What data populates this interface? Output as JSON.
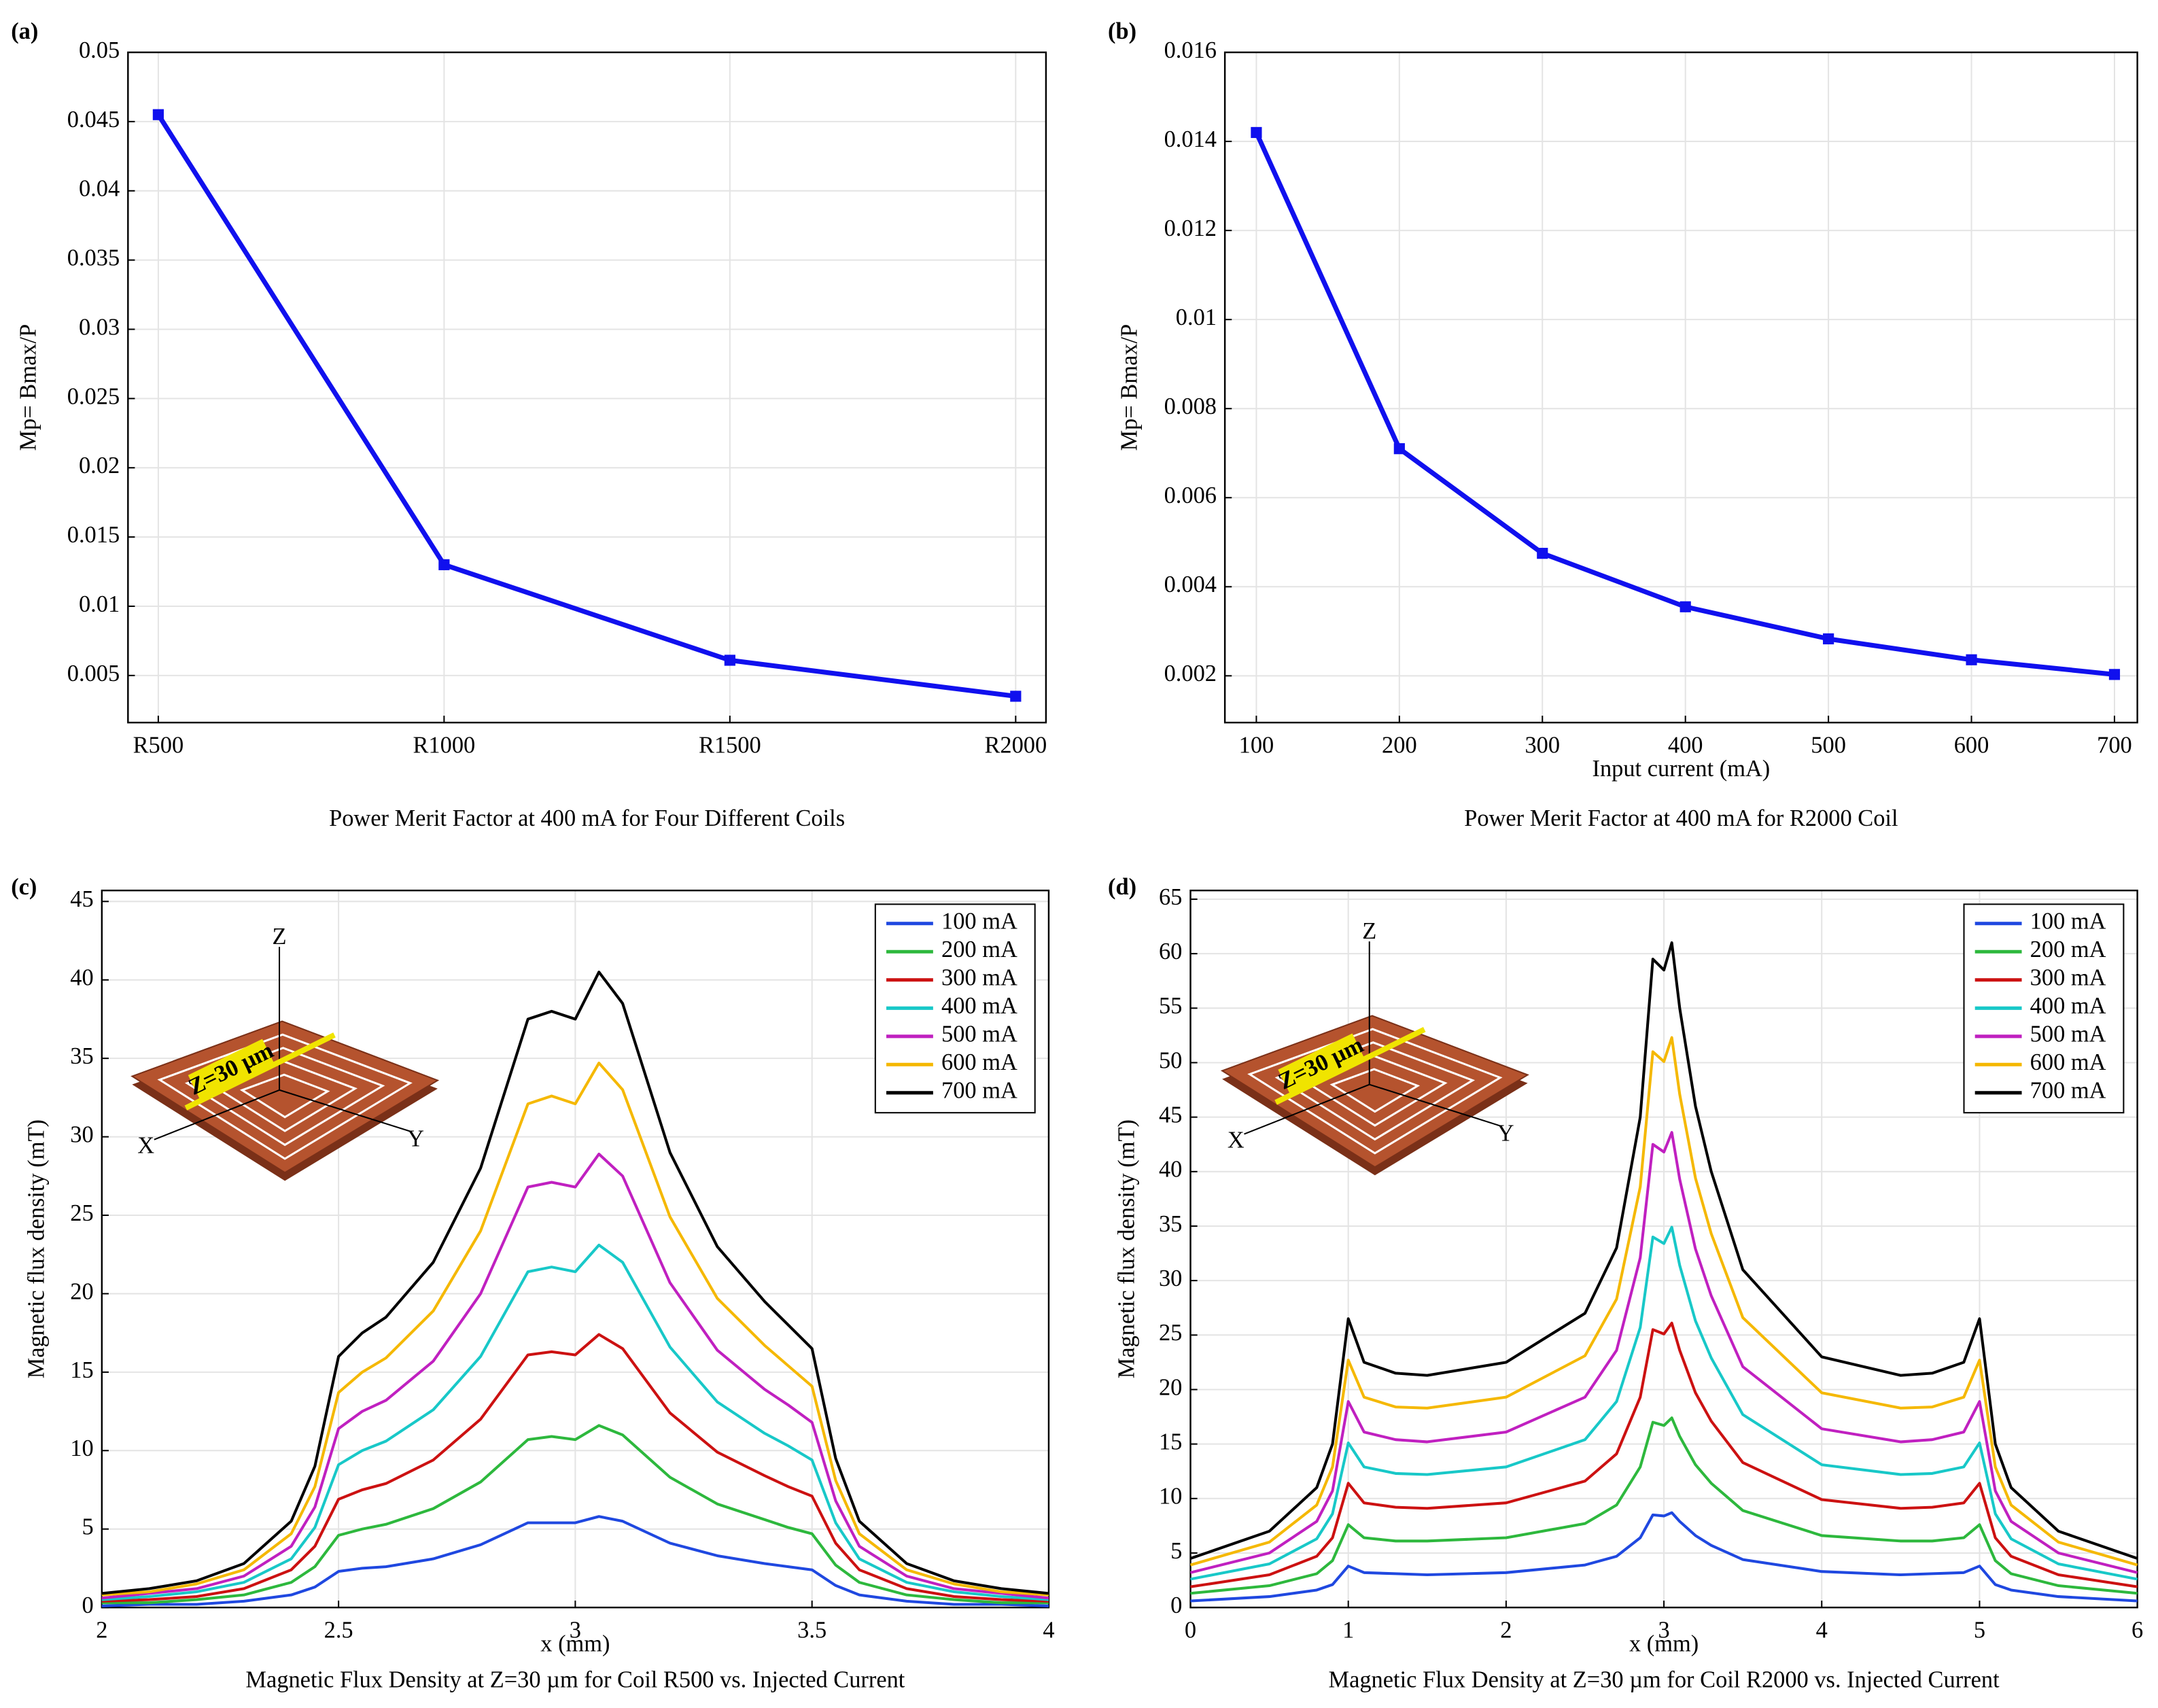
{
  "chart_data": [
    {
      "type": "line",
      "panel": "(a)",
      "title": "Power Merit Factor at 400 mA for Four Different Coils",
      "ylabel": "Mp= Bmax/P",
      "categories": [
        "R500",
        "R1000",
        "R1500",
        "R2000"
      ],
      "values": [
        0.0455,
        0.013,
        0.0061,
        0.0035
      ],
      "color": "#1010ee",
      "marker": "square",
      "ylim": [
        0.0016,
        0.05
      ],
      "yticks": [
        0.005,
        0.01,
        0.015,
        0.02,
        0.025,
        0.03,
        0.035,
        0.04,
        0.045,
        0.05
      ],
      "grid": true
    },
    {
      "type": "line",
      "panel": "(b)",
      "title": "Power Merit Factor at 400 mA for R2000 Coil",
      "xlabel": "Input current (mA)",
      "ylabel": "Mp= Bmax/P",
      "x": [
        100,
        200,
        300,
        400,
        500,
        600,
        700
      ],
      "values": [
        0.0142,
        0.0071,
        0.00475,
        0.00355,
        0.00283,
        0.00236,
        0.00203
      ],
      "color": "#1010ee",
      "marker": "square",
      "xlim": [
        78,
        716
      ],
      "xticks": [
        100,
        200,
        300,
        400,
        500,
        600,
        700
      ],
      "ylim": [
        0.00095,
        0.016
      ],
      "yticks": [
        0.002,
        0.004,
        0.006,
        0.008,
        0.01,
        0.012,
        0.014,
        0.016
      ],
      "grid": true
    },
    {
      "type": "line",
      "panel": "(c)",
      "title": "Magnetic Flux Density at Z=30 µm for Coil R500 vs. Injected Current",
      "xlabel": "x (mm)",
      "ylabel": "Magnetic flux density  (mT)",
      "inset": {
        "axis_labels": [
          "Z",
          "X",
          "Y"
        ],
        "annotation": "Z=30 μm"
      },
      "x": [
        2,
        2.1,
        2.2,
        2.3,
        2.4,
        2.45,
        2.5,
        2.55,
        2.6,
        2.7,
        2.8,
        2.9,
        2.95,
        3,
        3.05,
        3.1,
        3.2,
        3.3,
        3.4,
        3.45,
        3.5,
        3.55,
        3.6,
        3.7,
        3.8,
        3.9,
        4
      ],
      "series": [
        {
          "name": "100 mA",
          "color": "#1f48e0",
          "values": [
            0.1,
            0.2,
            0.2,
            0.4,
            0.8,
            1.3,
            2.3,
            2.5,
            2.6,
            3.1,
            4.0,
            5.4,
            5.4,
            5.4,
            5.8,
            5.5,
            4.1,
            3.3,
            2.8,
            2.6,
            2.4,
            1.4,
            0.8,
            0.4,
            0.2,
            0.2,
            0.1
          ]
        },
        {
          "name": "200 mA",
          "color": "#2db83d",
          "values": [
            0.3,
            0.3,
            0.5,
            0.8,
            1.6,
            2.6,
            4.6,
            5.0,
            5.3,
            6.3,
            8.0,
            10.7,
            10.9,
            10.7,
            11.6,
            11.0,
            8.3,
            6.6,
            5.6,
            5.1,
            4.7,
            2.7,
            1.6,
            0.8,
            0.5,
            0.3,
            0.3
          ]
        },
        {
          "name": "300 mA",
          "color": "#cc1111",
          "values": [
            0.4,
            0.5,
            0.7,
            1.2,
            2.4,
            3.9,
            6.9,
            7.5,
            7.9,
            9.4,
            12.0,
            16.1,
            16.3,
            16.1,
            17.4,
            16.5,
            12.4,
            9.9,
            8.4,
            7.7,
            7.1,
            4.1,
            2.4,
            1.2,
            0.7,
            0.5,
            0.4
          ]
        },
        {
          "name": "400 mA",
          "color": "#18c8c8",
          "values": [
            0.5,
            0.7,
            1.0,
            1.6,
            3.1,
            5.1,
            9.1,
            10.0,
            10.6,
            12.6,
            16.0,
            21.4,
            21.7,
            21.4,
            23.1,
            22.0,
            16.6,
            13.1,
            11.1,
            10.3,
            9.4,
            5.4,
            3.1,
            1.6,
            1.0,
            0.7,
            0.5
          ]
        },
        {
          "name": "500 mA",
          "color": "#c020c0",
          "values": [
            0.6,
            0.9,
            1.2,
            2.0,
            3.9,
            6.4,
            11.4,
            12.5,
            13.2,
            15.7,
            20.0,
            26.8,
            27.1,
            26.8,
            28.9,
            27.5,
            20.7,
            16.4,
            13.9,
            12.9,
            11.8,
            6.8,
            3.9,
            2.0,
            1.2,
            0.9,
            0.6
          ]
        },
        {
          "name": "600 mA",
          "color": "#f5b800",
          "values": [
            0.8,
            1.0,
            1.5,
            2.4,
            4.7,
            7.7,
            13.7,
            15.0,
            15.9,
            18.9,
            24.0,
            32.1,
            32.6,
            32.1,
            34.7,
            33.0,
            24.9,
            19.7,
            16.7,
            15.4,
            14.1,
            8.1,
            4.7,
            2.4,
            1.5,
            1.0,
            0.8
          ]
        },
        {
          "name": "700 mA",
          "color": "#000000",
          "values": [
            0.9,
            1.2,
            1.7,
            2.8,
            5.5,
            9,
            16,
            17.5,
            18.5,
            22,
            28,
            37.5,
            38,
            37.5,
            40.5,
            38.5,
            29,
            23,
            19.5,
            18,
            16.5,
            9.5,
            5.5,
            2.8,
            1.7,
            1.2,
            0.9
          ]
        }
      ],
      "xlim": [
        2,
        4
      ],
      "xticks": [
        2,
        2.5,
        3,
        3.5,
        4
      ],
      "ylim": [
        0,
        45.7
      ],
      "yticks": [
        0,
        5,
        10,
        15,
        20,
        25,
        30,
        35,
        40,
        45
      ],
      "grid": true,
      "legend": "upper right"
    },
    {
      "type": "line",
      "panel": "(d)",
      "title": "Magnetic Flux Density at Z=30 µm for Coil R2000 vs. Injected Current",
      "xlabel": "x (mm)",
      "ylabel": "Magnetic flux density  (mT)",
      "inset": {
        "axis_labels": [
          "Z",
          "X",
          "Y"
        ],
        "annotation": "Z=30 μm"
      },
      "x": [
        0,
        0.5,
        0.8,
        0.9,
        1,
        1.1,
        1.3,
        1.5,
        2,
        2.5,
        2.7,
        2.85,
        2.93,
        3,
        3.05,
        3.1,
        3.2,
        3.3,
        3.5,
        4,
        4.5,
        4.7,
        4.9,
        5,
        5.1,
        5.2,
        5.5,
        6
      ],
      "series": [
        {
          "name": "100 mA",
          "color": "#1f48e0",
          "values": [
            0.6,
            1.0,
            1.6,
            2.1,
            3.8,
            3.2,
            3.1,
            3.0,
            3.2,
            3.9,
            4.7,
            6.4,
            8.5,
            8.4,
            8.7,
            7.9,
            6.6,
            5.7,
            4.4,
            3.3,
            3.0,
            3.1,
            3.2,
            3.8,
            2.1,
            1.6,
            1.0,
            0.6
          ]
        },
        {
          "name": "200 mA",
          "color": "#2db83d",
          "values": [
            1.3,
            2.0,
            3.1,
            4.3,
            7.6,
            6.4,
            6.1,
            6.1,
            6.4,
            7.7,
            9.4,
            12.9,
            17.0,
            16.7,
            17.4,
            15.7,
            13.1,
            11.4,
            8.9,
            6.6,
            6.1,
            6.1,
            6.4,
            7.6,
            4.3,
            3.1,
            2.0,
            1.3
          ]
        },
        {
          "name": "300 mA",
          "color": "#cc1111",
          "values": [
            1.9,
            3.0,
            4.7,
            6.4,
            11.4,
            9.6,
            9.2,
            9.1,
            9.6,
            11.6,
            14.1,
            19.3,
            25.5,
            25.1,
            26.1,
            23.6,
            19.7,
            17.1,
            13.3,
            9.9,
            9.1,
            9.2,
            9.6,
            11.4,
            6.4,
            4.7,
            3.0,
            1.9
          ]
        },
        {
          "name": "400 mA",
          "color": "#18c8c8",
          "values": [
            2.6,
            4.0,
            6.3,
            8.6,
            15.1,
            12.9,
            12.3,
            12.2,
            12.9,
            15.4,
            18.9,
            25.7,
            34.0,
            33.4,
            34.9,
            31.4,
            26.3,
            22.9,
            17.7,
            13.1,
            12.2,
            12.3,
            12.9,
            15.1,
            8.6,
            6.3,
            4.0,
            2.6
          ]
        },
        {
          "name": "500 mA",
          "color": "#c020c0",
          "values": [
            3.2,
            5.0,
            7.9,
            10.7,
            18.9,
            16.1,
            15.4,
            15.2,
            16.1,
            19.3,
            23.6,
            32.1,
            42.5,
            41.8,
            43.6,
            39.3,
            32.9,
            28.6,
            22.1,
            16.4,
            15.2,
            15.4,
            16.1,
            18.9,
            10.7,
            7.9,
            5.0,
            3.2
          ]
        },
        {
          "name": "600 mA",
          "color": "#f5b800",
          "values": [
            3.9,
            6.0,
            9.4,
            12.9,
            22.7,
            19.3,
            18.4,
            18.3,
            19.3,
            23.1,
            28.3,
            38.6,
            51.0,
            50.1,
            52.3,
            47.1,
            39.4,
            34.3,
            26.6,
            19.7,
            18.3,
            18.4,
            19.3,
            22.7,
            12.9,
            9.4,
            6.0,
            3.9
          ]
        },
        {
          "name": "700 mA",
          "color": "#000000",
          "values": [
            4.5,
            7,
            11,
            15,
            26.5,
            22.5,
            21.5,
            21.3,
            22.5,
            27,
            33,
            45,
            59.5,
            58.5,
            61,
            55,
            46,
            40,
            31,
            23,
            21.3,
            21.5,
            22.5,
            26.5,
            15,
            11,
            7,
            4.5
          ]
        }
      ],
      "xlim": [
        0,
        6
      ],
      "xticks": [
        0,
        1,
        2,
        3,
        4,
        5,
        6
      ],
      "ylim": [
        0,
        65.8
      ],
      "yticks": [
        0,
        5,
        10,
        15,
        20,
        25,
        30,
        35,
        40,
        45,
        50,
        55,
        60,
        65
      ],
      "grid": true,
      "legend": "upper right"
    }
  ]
}
